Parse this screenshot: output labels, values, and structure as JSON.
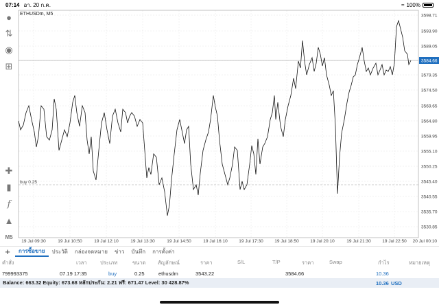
{
  "status": {
    "time": "07:14",
    "date": "อา. 20 ก.ค.",
    "battery": "100%"
  },
  "chart": {
    "symbol_label": "ETHUSDm, M5",
    "buy_line_label": "buy 0.25",
    "current_price": "3584.66",
    "accent": "#1f6fbf",
    "price_labels": [
      "3598.71",
      "3593.90",
      "3589.05",
      "3584.66",
      "3579.35",
      "3574.50",
      "3569.65",
      "3564.80",
      "3559.95",
      "3555.10",
      "3550.25",
      "3545.40",
      "3540.55",
      "3535.70",
      "3530.85"
    ],
    "time_labels": [
      "19 Jul 09:30",
      "19 Jul 10:50",
      "19 Jul 12:10",
      "19 Jul 13:30",
      "19 Jul 14:50",
      "19 Jul 16:10",
      "19 Jul 17:30",
      "19 Jul 18:50",
      "19 Jul 20:10",
      "19 Jul 21:30",
      "19 Jul 22:50",
      "20 Jul 00:10"
    ]
  },
  "toolbar": {
    "icons": [
      "person-icon",
      "trade-icon",
      "chat-icon",
      "add-document-icon",
      "crosshair-icon",
      "indicators-icon",
      "function-icon",
      "objects-icon"
    ],
    "timeframe": "M5"
  },
  "tabs": [
    "การซื้อขาย",
    "ประวัติ",
    "กล่องจดหมาย",
    "ข่าว",
    "บันทึก",
    "การตั้งค่า"
  ],
  "table": {
    "headers": [
      "คำสั่ง",
      "เวลา",
      "ประเภท",
      "ขนาด",
      "สัญลักษณ์",
      "ราคา",
      "S/L",
      "T/P",
      "ราคา",
      "Swap",
      "กำไร",
      "หมายเหตุ"
    ],
    "row": {
      "order": "799993375",
      "time": "07.19 17:35",
      "type": "buy",
      "size": "0.25",
      "symbol": "ethusdm",
      "open_price": "3543.22",
      "price": "3584.66",
      "profit": "10.36"
    }
  },
  "balance": {
    "text": "Balance: 663.32 Equity: 673.68 หลักประกัน: 2.21 ฟรี: 671.47 Level: 30 428.87%",
    "profit": "10.36",
    "currency": "USD"
  }
}
